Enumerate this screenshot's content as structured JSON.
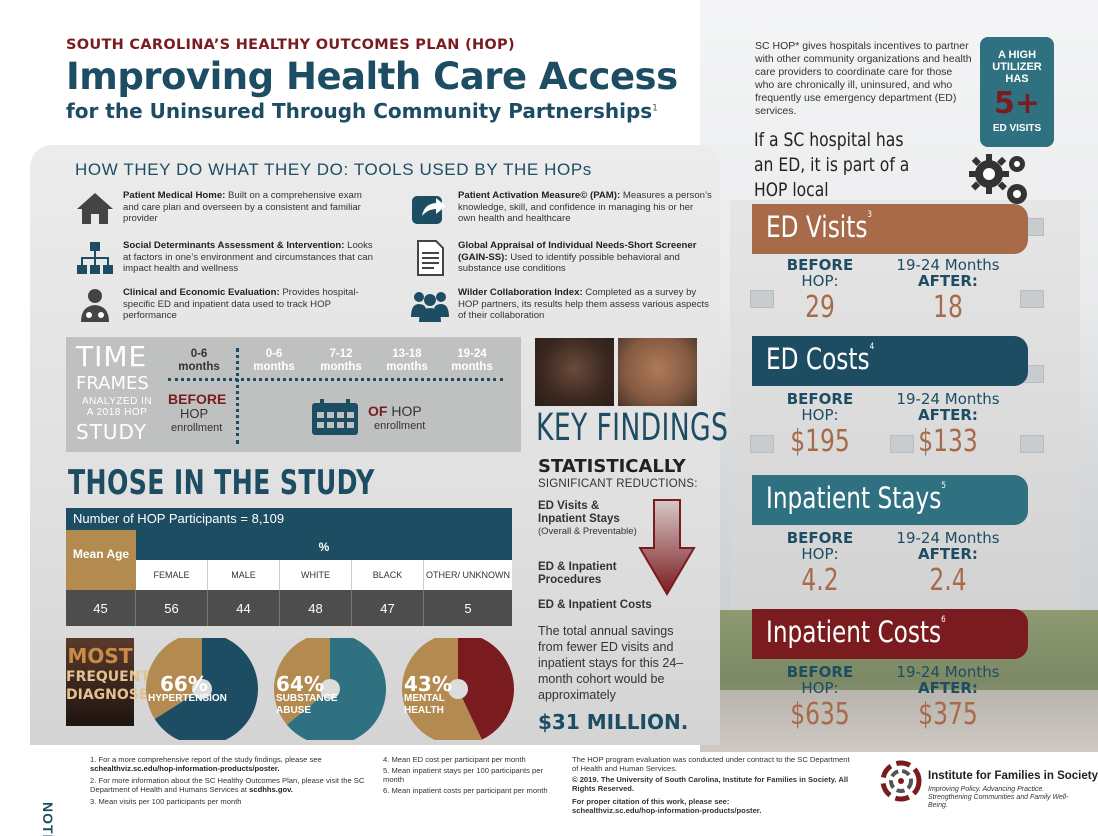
{
  "header": {
    "pretitle": "SOUTH CAROLINA’S HEALTHY OUTCOMES PLAN (HOP)",
    "title": "Improving Health Care Access",
    "subtitle": "for the Uninsured Through Community Partnerships",
    "subtitle_sup": "1"
  },
  "intro": {
    "text": "SC HOP* gives hospitals incentives to partner with other community organizations and health care providers to coordinate care for those who are chronically ill, uninsured, and who frequently use emergency department (ED) services.",
    "badge_line1": "A HIGH UTILIZER HAS",
    "badge_num": "5+",
    "badge_line2": "ED VISITS",
    "partnership": "If a SC hospital has an ED, it is part of a HOP local partnership."
  },
  "tools": {
    "title": "HOW THEY DO WHAT THEY DO: TOOLS USED BY THE HOPs",
    "items": [
      {
        "name": "Patient Medical Home:",
        "desc": " Built on a comprehensive exam and care plan and overseen by a consistent and familiar provider",
        "icon": "house-icon"
      },
      {
        "name": "Patient Activation Measure© (PAM):",
        "desc": " Measures a person’s knowledge, skill, and confidence in managing his or her own health and healthcare",
        "icon": "share-arrow-icon"
      },
      {
        "name": "Social Determinants Assessment & Intervention:",
        "desc": " Looks at factors in one’s environment and circumstances that can impact health and wellness",
        "icon": "org-chart-icon"
      },
      {
        "name": "Global Appraisal of Individual Needs-Short Screener (GAIN-SS):",
        "desc": " Used to identify possible behavioral and substance use conditions",
        "icon": "document-icon"
      },
      {
        "name": "Clinical and Economic Evaluation:",
        "desc": " Provides hospital-specific ED and inpatient data used to track HOP performance",
        "icon": "doctor-icon"
      },
      {
        "name": "Wilder Collaboration Index:",
        "desc": " Completed as a survey by HOP partners, its results help them assess various aspects of their collaboration",
        "icon": "group-icon"
      }
    ]
  },
  "timeframes": {
    "big1": "TIME",
    "big2": "FRAMES",
    "analyzed": "ANALYZED IN A 2018 HOP",
    "study": "STUDY",
    "before_period": "0-6 months",
    "after_periods": [
      "0-6 months",
      "7-12 months",
      "13-18 months",
      "19-24 months"
    ],
    "before_label": "BEFORE",
    "hop": "HOP",
    "enrollment": "enrollment",
    "of_label": "OF",
    "of_hop": " HOP",
    "of_enrollment": "enrollment"
  },
  "study": {
    "title": "THOSE IN THE STUDY",
    "participants": "Number of  HOP Participants = 8,109",
    "mean_age_label": "Mean Age",
    "pct_label": "%",
    "columns": [
      "FEMALE",
      "MALE",
      "WHITE",
      "BLACK",
      "OTHER/ UNKNOWN"
    ],
    "mean_age": "45",
    "values": [
      "56",
      "44",
      "48",
      "47",
      "5"
    ]
  },
  "diagnoses": {
    "label1": "MOST",
    "label2": "FREQUENT",
    "label3": "DIAGNOSES",
    "items": [
      {
        "pct": "66%",
        "label": "HYPERTENSION",
        "value": 0.66,
        "color": "#1d4d63"
      },
      {
        "pct": "64%",
        "label": "SUBSTANCE ABUSE",
        "value": 0.64,
        "color": "#2f7180"
      },
      {
        "pct": "43%",
        "label": "MENTAL HEALTH",
        "value": 0.43,
        "color": "#7a1c1f"
      }
    ],
    "remainder_color": "#b38b50"
  },
  "findings": {
    "title": "KEY FINDINGS",
    "stat": "STATISTICALLY",
    "sig": "SIGNIFICANT REDUCTIONS:",
    "item1": "ED Visits & Inpatient Stays",
    "item1_sub": "(Overall & Preventable)",
    "item2": "ED & Inpatient Procedures",
    "item3": "ED & Inpatient Costs",
    "saving_text": "The total annual savings from fewer ED visits and inpatient stays for this 24–month cohort would be approximately",
    "saving_amount": "$31 MILLION."
  },
  "metrics": [
    {
      "title": "ED Visits",
      "sup": "3",
      "before": "29",
      "after": "18",
      "color": "#a76b4a"
    },
    {
      "title": "ED Costs",
      "sup": "4",
      "before": "$195",
      "after": "$133",
      "color": "#1d4d63"
    },
    {
      "title": "Inpatient Stays",
      "sup": "5",
      "before": "4.2",
      "after": "2.4",
      "color": "#2f7180"
    },
    {
      "title": "Inpatient Costs",
      "sup": "6",
      "before": "$635",
      "after": "$375",
      "color": "#7a1c1f"
    }
  ],
  "metric_labels": {
    "before": "BEFORE",
    "before_hop": "HOP:",
    "months": "19-24 Months",
    "after": "AFTER:"
  },
  "notes": {
    "label": "NOTES",
    "n1": "1.  For a more comprehensive report of the study findings, please see",
    "n1b": "schealthviz.sc.edu/hop-information-products/poster.",
    "n2": "2.  For more information about the SC Healthy Outcomes Plan, please visit the SC Department of Health and Humans Services at",
    "n2b": "scdhhs.gov.",
    "n3": "3.  Mean visits per 100 participants per month",
    "n4": "4.  Mean ED cost per participant per month",
    "n5": "5.  Mean inpatient stays per 100 participants per month",
    "n6": "6.  Mean inpatient costs per participant per month",
    "contract": "The HOP program evaluation was conducted under contract to the SC Department of Health and Human Services.",
    "copyright": "© 2019. The University of South Carolina, Institute for Families in Society. All Rights Reserved.",
    "citation": "For proper citation of this work, please see:",
    "citation_url": "schealthviz.sc.edu/hop-information-products/poster.",
    "inst_name": "Institute for Families in Society",
    "inst_tag": "Improving Policy. Advancing Practice. Strengthening Communities and Family Well-Being."
  }
}
